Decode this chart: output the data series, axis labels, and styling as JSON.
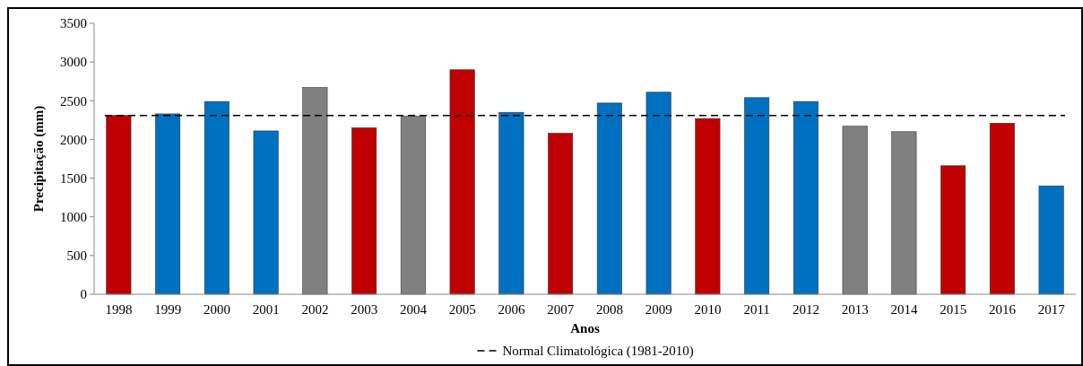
{
  "chart_data": {
    "type": "bar",
    "xlabel": "Anos",
    "ylabel": "Precipitação (mm)",
    "categories": [
      "1998",
      "1999",
      "2000",
      "2001",
      "2002",
      "2003",
      "2004",
      "2005",
      "2006",
      "2007",
      "2008",
      "2009",
      "2010",
      "2011",
      "2012",
      "2013",
      "2014",
      "2015",
      "2016",
      "2017"
    ],
    "values": [
      2310,
      2330,
      2490,
      2110,
      2670,
      2150,
      2300,
      2900,
      2350,
      2080,
      2470,
      2610,
      2270,
      2540,
      2490,
      2170,
      2100,
      1660,
      2210,
      1400
    ],
    "colors": [
      "#c00000",
      "#0070c0",
      "#0070c0",
      "#0070c0",
      "#808080",
      "#c00000",
      "#808080",
      "#c00000",
      "#0070c0",
      "#c00000",
      "#0070c0",
      "#0070c0",
      "#c00000",
      "#0070c0",
      "#0070c0",
      "#808080",
      "#808080",
      "#c00000",
      "#c00000",
      "#0070c0"
    ],
    "ylim": [
      0,
      3500
    ],
    "yticks": [
      0,
      500,
      1000,
      1500,
      2000,
      2500,
      3000,
      3500
    ],
    "ref_lines": [
      {
        "axis": "y",
        "value": 2310,
        "label": "Normal Climatológica (1981-2010)",
        "color": "#000000",
        "line_style": "dashed"
      }
    ],
    "legend": "bottom",
    "grid": false
  }
}
